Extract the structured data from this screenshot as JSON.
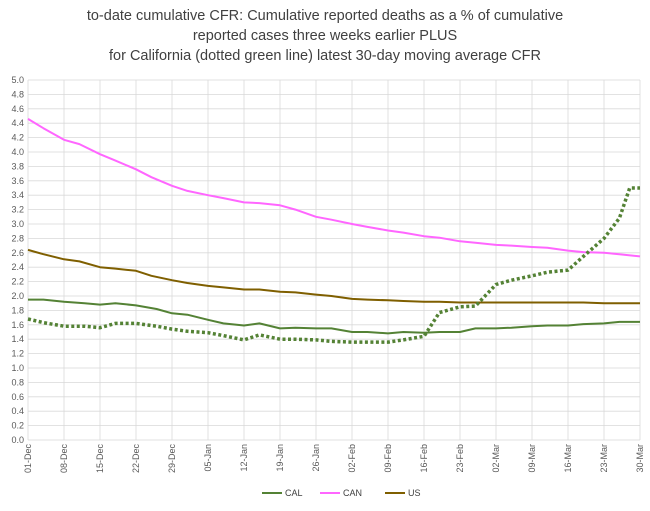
{
  "chart_data": {
    "type": "line",
    "title_lines": [
      "to-date cumulative CFR: Cumulative reported deaths as a % of cumulative",
      "reported cases three weeks earlier PLUS",
      "for California (dotted green line) latest 30-day moving average CFR"
    ],
    "ylim": [
      0,
      5
    ],
    "yticks": [
      "0.0",
      "0.2",
      "0.4",
      "0.6",
      "0.8",
      "1.0",
      "1.2",
      "1.4",
      "1.6",
      "1.8",
      "2.0",
      "2.2",
      "2.4",
      "2.6",
      "2.8",
      "3.0",
      "3.2",
      "3.4",
      "3.6",
      "3.8",
      "4.0",
      "4.2",
      "4.4",
      "4.6",
      "4.8",
      "5.0"
    ],
    "xlim": [
      0,
      119
    ],
    "xticks": [
      {
        "label": "01-Dec",
        "x": 0
      },
      {
        "label": "08-Dec",
        "x": 7
      },
      {
        "label": "15-Dec",
        "x": 14
      },
      {
        "label": "22-Dec",
        "x": 21
      },
      {
        "label": "29-Dec",
        "x": 28
      },
      {
        "label": "05-Jan",
        "x": 35
      },
      {
        "label": "12-Jan",
        "x": 42
      },
      {
        "label": "19-Jan",
        "x": 49
      },
      {
        "label": "26-Jan",
        "x": 56
      },
      {
        "label": "02-Feb",
        "x": 63
      },
      {
        "label": "09-Feb",
        "x": 70
      },
      {
        "label": "16-Feb",
        "x": 77
      },
      {
        "label": "23-Feb",
        "x": 84
      },
      {
        "label": "02-Mar",
        "x": 91
      },
      {
        "label": "09-Mar",
        "x": 98
      },
      {
        "label": "16-Mar",
        "x": 105
      },
      {
        "label": "23-Mar",
        "x": 112
      },
      {
        "label": "30-Mar",
        "x": 119
      }
    ],
    "grid": true,
    "legend_position": "bottom",
    "series": [
      {
        "name": "CAL",
        "color": "#548235",
        "style": "solid",
        "points": [
          [
            0,
            1.95
          ],
          [
            3,
            1.95
          ],
          [
            7,
            1.92
          ],
          [
            11,
            1.9
          ],
          [
            14,
            1.88
          ],
          [
            17,
            1.9
          ],
          [
            21,
            1.87
          ],
          [
            25,
            1.82
          ],
          [
            28,
            1.76
          ],
          [
            31,
            1.74
          ],
          [
            35,
            1.67
          ],
          [
            38,
            1.62
          ],
          [
            42,
            1.59
          ],
          [
            45,
            1.62
          ],
          [
            49,
            1.55
          ],
          [
            52,
            1.56
          ],
          [
            56,
            1.55
          ],
          [
            59,
            1.55
          ],
          [
            63,
            1.5
          ],
          [
            66,
            1.5
          ],
          [
            70,
            1.48
          ],
          [
            73,
            1.5
          ],
          [
            77,
            1.49
          ],
          [
            80,
            1.5
          ],
          [
            84,
            1.5
          ],
          [
            87,
            1.55
          ],
          [
            91,
            1.55
          ],
          [
            94,
            1.56
          ],
          [
            98,
            1.58
          ],
          [
            101,
            1.59
          ],
          [
            105,
            1.59
          ],
          [
            108,
            1.61
          ],
          [
            112,
            1.62
          ],
          [
            115,
            1.64
          ],
          [
            119,
            1.64
          ]
        ]
      },
      {
        "name": "CAN",
        "color": "#ff66ff",
        "style": "solid",
        "points": [
          [
            0,
            4.46
          ],
          [
            3,
            4.33
          ],
          [
            7,
            4.17
          ],
          [
            10,
            4.11
          ],
          [
            14,
            3.97
          ],
          [
            17,
            3.88
          ],
          [
            21,
            3.76
          ],
          [
            24,
            3.65
          ],
          [
            28,
            3.53
          ],
          [
            31,
            3.46
          ],
          [
            35,
            3.4
          ],
          [
            38,
            3.36
          ],
          [
            42,
            3.3
          ],
          [
            45,
            3.29
          ],
          [
            49,
            3.26
          ],
          [
            52,
            3.2
          ],
          [
            56,
            3.1
          ],
          [
            59,
            3.06
          ],
          [
            63,
            3.0
          ],
          [
            66,
            2.96
          ],
          [
            70,
            2.91
          ],
          [
            73,
            2.88
          ],
          [
            77,
            2.83
          ],
          [
            80,
            2.81
          ],
          [
            84,
            2.76
          ],
          [
            87,
            2.74
          ],
          [
            91,
            2.71
          ],
          [
            94,
            2.7
          ],
          [
            98,
            2.68
          ],
          [
            101,
            2.67
          ],
          [
            105,
            2.63
          ],
          [
            108,
            2.61
          ],
          [
            112,
            2.6
          ],
          [
            115,
            2.58
          ],
          [
            119,
            2.55
          ]
        ]
      },
      {
        "name": "US",
        "color": "#7f5f00",
        "style": "solid",
        "points": [
          [
            0,
            2.64
          ],
          [
            3,
            2.58
          ],
          [
            7,
            2.51
          ],
          [
            10,
            2.48
          ],
          [
            14,
            2.4
          ],
          [
            17,
            2.38
          ],
          [
            21,
            2.35
          ],
          [
            24,
            2.28
          ],
          [
            28,
            2.22
          ],
          [
            31,
            2.18
          ],
          [
            35,
            2.14
          ],
          [
            38,
            2.12
          ],
          [
            42,
            2.09
          ],
          [
            45,
            2.09
          ],
          [
            49,
            2.06
          ],
          [
            52,
            2.05
          ],
          [
            56,
            2.02
          ],
          [
            59,
            2.0
          ],
          [
            63,
            1.96
          ],
          [
            66,
            1.95
          ],
          [
            70,
            1.94
          ],
          [
            73,
            1.93
          ],
          [
            77,
            1.92
          ],
          [
            80,
            1.92
          ],
          [
            84,
            1.91
          ],
          [
            87,
            1.91
          ],
          [
            91,
            1.91
          ],
          [
            94,
            1.91
          ],
          [
            98,
            1.91
          ],
          [
            101,
            1.91
          ],
          [
            105,
            1.91
          ],
          [
            108,
            1.91
          ],
          [
            112,
            1.9
          ],
          [
            115,
            1.9
          ],
          [
            119,
            1.9
          ]
        ]
      },
      {
        "name": "",
        "color": "#548235",
        "style": "dotted",
        "points": [
          [
            0,
            1.68
          ],
          [
            3,
            1.63
          ],
          [
            7,
            1.58
          ],
          [
            11,
            1.58
          ],
          [
            14,
            1.56
          ],
          [
            17,
            1.62
          ],
          [
            21,
            1.62
          ],
          [
            25,
            1.58
          ],
          [
            28,
            1.54
          ],
          [
            31,
            1.51
          ],
          [
            35,
            1.49
          ],
          [
            38,
            1.45
          ],
          [
            42,
            1.39
          ],
          [
            45,
            1.46
          ],
          [
            49,
            1.4
          ],
          [
            52,
            1.4
          ],
          [
            56,
            1.39
          ],
          [
            59,
            1.37
          ],
          [
            63,
            1.36
          ],
          [
            66,
            1.36
          ],
          [
            70,
            1.36
          ],
          [
            73,
            1.39
          ],
          [
            77,
            1.44
          ],
          [
            80,
            1.77
          ],
          [
            84,
            1.85
          ],
          [
            87,
            1.86
          ],
          [
            91,
            2.16
          ],
          [
            94,
            2.22
          ],
          [
            98,
            2.28
          ],
          [
            101,
            2.33
          ],
          [
            105,
            2.36
          ],
          [
            108,
            2.55
          ],
          [
            112,
            2.8
          ],
          [
            115,
            3.08
          ],
          [
            117,
            3.5
          ],
          [
            119,
            3.5
          ]
        ]
      }
    ]
  }
}
